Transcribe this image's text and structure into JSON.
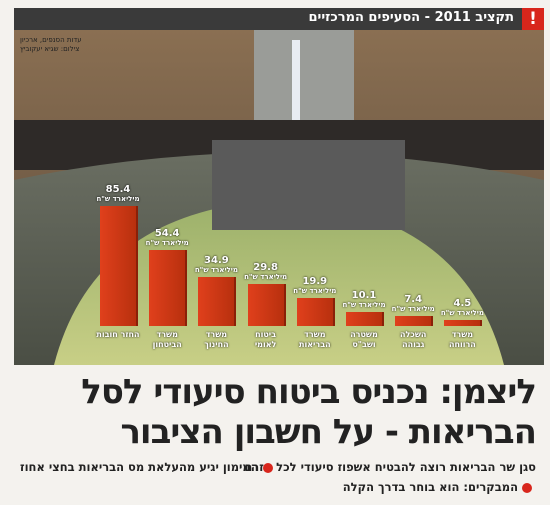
{
  "banner": {
    "title": "תקציב 2011 - הסעיפים המרכזיים",
    "icon": "!"
  },
  "photo_credit": [
    "עדות הסנפים, ארכיון",
    "צילום: שגיא יעקוביץ"
  ],
  "chart_data": {
    "type": "bar",
    "color": "#e0401c",
    "unit": "מיליארד ש\"ח",
    "categories": [
      "החזר חובות",
      "משרד הביטחון",
      "משרד החינוך",
      "ביטוח לאומי",
      "משרד הבריאות",
      "משטרה ושב\"ס",
      "השכלה גבוהה",
      "משרד הרווחה"
    ],
    "values": [
      85.4,
      54.4,
      34.9,
      29.8,
      19.9,
      10.1,
      7.4,
      4.5
    ]
  },
  "headline": [
    "ליצמן: נכניס ביטוח סיעודי לסל",
    "הבריאות - על חשבון הציבור"
  ],
  "subheads": [
    "סגן שר הבריאות רוצה להבטיח אשפוז סיעודי לכל אזרח",
    "המימון יגיע מהעלאת מס הבריאות בחצי אחוז",
    "המבקרים: הוא בוחר בדרך הקלה"
  ]
}
